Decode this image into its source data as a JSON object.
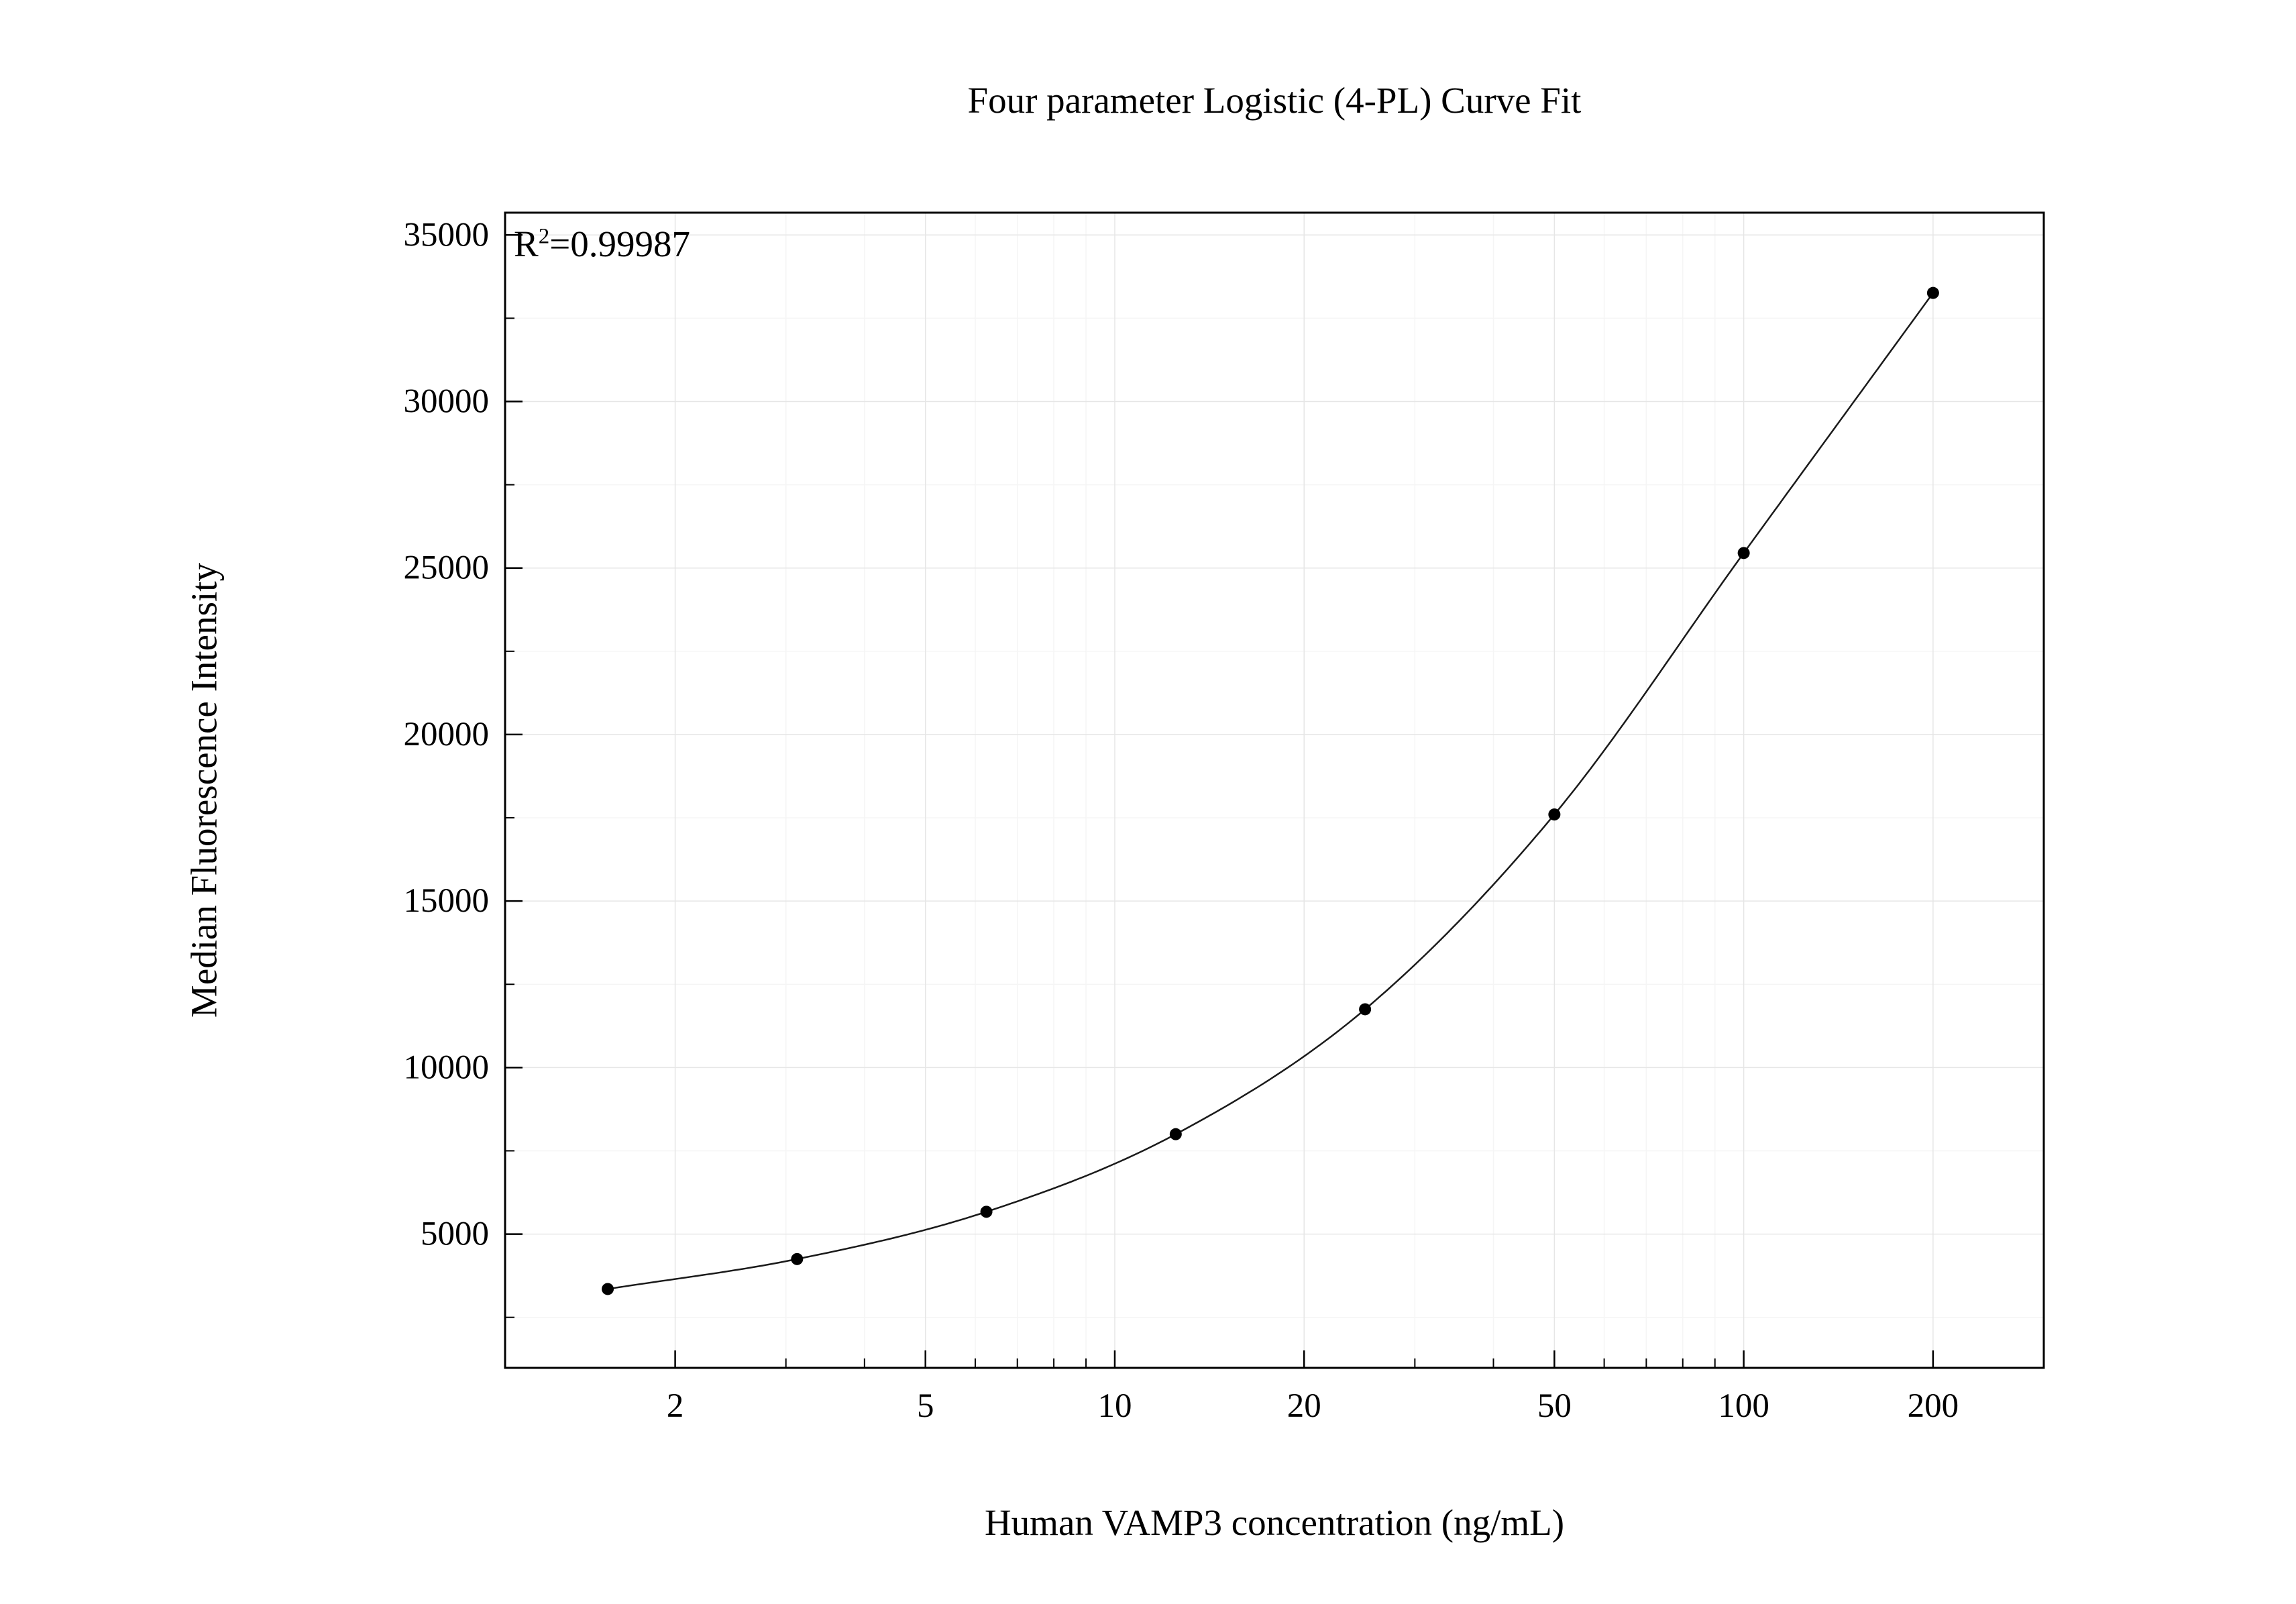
{
  "chart_data": {
    "type": "scatter",
    "title": "Four parameter Logistic (4-PL) Curve Fit",
    "xlabel": "Human VAMP3 concentration (ng/mL)",
    "ylabel": "Median Fluorescence Intensity",
    "x_scale": "log",
    "x": [
      1.5625,
      3.125,
      6.25,
      12.5,
      25,
      50,
      100,
      200
    ],
    "y": [
      3350,
      4250,
      5670,
      8000,
      11750,
      17600,
      25450,
      33260
    ],
    "fit": "4-PL logistic curve through all points",
    "r_squared": 0.99987,
    "annotation": {
      "base": "R",
      "sup": "2",
      "rest": "=0.99987"
    },
    "xlim": [
      1.073,
      300
    ],
    "ylim": [
      983,
      35670
    ],
    "x_ticks": [
      2,
      5,
      10,
      20,
      50,
      100,
      200
    ],
    "x_tick_labels": [
      "2",
      "5",
      "10",
      "20",
      "50",
      "100",
      "200"
    ],
    "y_ticks": [
      5000,
      10000,
      15000,
      20000,
      25000,
      30000,
      35000
    ],
    "y_tick_labels": [
      "5000",
      "10000",
      "15000",
      "20000",
      "25000",
      "30000",
      "35000"
    ],
    "y_minor_step": 2500,
    "grid": true,
    "legend": false,
    "colors": {
      "points": "#000000",
      "curve": "#1a1a1a",
      "frame": "#000000",
      "text": "#000000",
      "grid_major": "#e6e6e6",
      "grid_minor": "#f5f5f5",
      "background": "#ffffff"
    }
  }
}
